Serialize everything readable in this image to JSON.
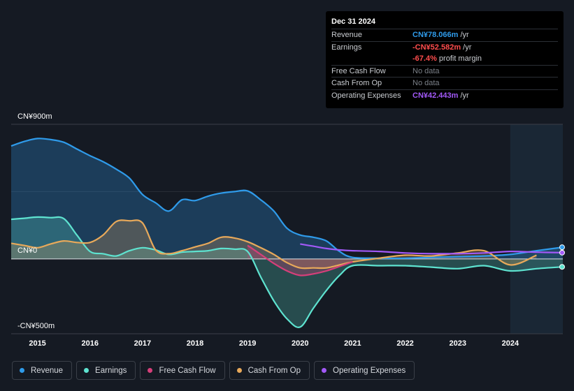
{
  "tooltip": {
    "date": "Dec 31 2024",
    "rows": [
      {
        "label": "Revenue",
        "value": "CN¥78.066m",
        "unit": " /yr"
      },
      {
        "label": "Earnings",
        "value": "-CN¥52.582m",
        "unit": " /yr"
      },
      {
        "label": "",
        "value": "-67.4%",
        "unit": " profit margin"
      },
      {
        "label": "Free Cash Flow",
        "value": "No data",
        "unit": ""
      },
      {
        "label": "Cash From Op",
        "value": "No data",
        "unit": ""
      },
      {
        "label": "Operating Expenses",
        "value": "CN¥42.443m",
        "unit": " /yr"
      }
    ]
  },
  "legend": [
    {
      "label": "Revenue",
      "color": "#2f9bea"
    },
    {
      "label": "Earnings",
      "color": "#5ee3d0"
    },
    {
      "label": "Free Cash Flow",
      "color": "#d63f7a"
    },
    {
      "label": "Cash From Op",
      "color": "#e8a95a"
    },
    {
      "label": "Operating Expenses",
      "color": "#a259f7"
    }
  ],
  "chart_data": {
    "type": "area",
    "y_tick_labels": {
      "top": "CN¥900m",
      "zero": "CN¥0",
      "bottom": "-CN¥500m"
    },
    "ylim": [
      -500,
      900
    ],
    "x_ticks": [
      2015,
      2016,
      2017,
      2018,
      2019,
      2020,
      2021,
      2022,
      2023,
      2024
    ],
    "xlim": [
      2014.5,
      2025.0
    ],
    "forecast_region_start": 2024.0,
    "series": [
      {
        "name": "Revenue",
        "color": "#2f9bea",
        "x": [
          2014.5,
          2014.75,
          2015.0,
          2015.25,
          2015.5,
          2015.75,
          2016.0,
          2016.25,
          2016.5,
          2016.75,
          2017.0,
          2017.25,
          2017.5,
          2017.75,
          2018.0,
          2018.25,
          2018.5,
          2018.75,
          2019.0,
          2019.25,
          2019.5,
          2019.75,
          2020.0,
          2020.25,
          2020.5,
          2020.75,
          2021.0,
          2021.5,
          2022.0,
          2022.5,
          2023.0,
          2023.5,
          2024.0,
          2024.5,
          2025.0
        ],
        "values": [
          755,
          785,
          805,
          798,
          780,
          735,
          690,
          650,
          600,
          540,
          430,
          375,
          320,
          395,
          390,
          420,
          440,
          450,
          455,
          395,
          320,
          205,
          160,
          145,
          120,
          50,
          10,
          5,
          5,
          10,
          15,
          20,
          30,
          55,
          78
        ]
      },
      {
        "name": "Earnings",
        "color": "#5ee3d0",
        "x": [
          2014.5,
          2014.75,
          2015.0,
          2015.25,
          2015.5,
          2015.75,
          2016.0,
          2016.25,
          2016.5,
          2016.75,
          2017.0,
          2017.25,
          2017.5,
          2017.75,
          2018.0,
          2018.25,
          2018.5,
          2018.75,
          2019.0,
          2019.25,
          2019.5,
          2019.75,
          2020.0,
          2020.25,
          2020.5,
          2020.75,
          2021.0,
          2021.5,
          2022.0,
          2022.5,
          2023.0,
          2023.5,
          2024.0,
          2024.5,
          2025.0
        ],
        "values": [
          265,
          272,
          280,
          276,
          270,
          160,
          50,
          35,
          20,
          55,
          75,
          60,
          30,
          45,
          50,
          55,
          70,
          65,
          50,
          -120,
          -280,
          -400,
          -455,
          -330,
          -210,
          -110,
          -45,
          -45,
          -45,
          -55,
          -65,
          -45,
          -80,
          -65,
          -53
        ]
      },
      {
        "name": "Free Cash Flow",
        "color": "#d63f7a",
        "x": [
          2019.0,
          2019.25,
          2019.5,
          2019.75,
          2020.0,
          2020.25,
          2020.5,
          2020.75,
          2021.0
        ],
        "values": [
          90,
          30,
          -30,
          -80,
          -110,
          -100,
          -80,
          -50,
          -20
        ]
      },
      {
        "name": "Cash From Op",
        "color": "#e8a95a",
        "x": [
          2014.5,
          2014.75,
          2015.0,
          2015.25,
          2015.5,
          2015.75,
          2016.0,
          2016.25,
          2016.5,
          2016.75,
          2017.0,
          2017.25,
          2017.5,
          2017.75,
          2018.0,
          2018.25,
          2018.5,
          2018.75,
          2019.0,
          2019.25,
          2019.5,
          2019.75,
          2020.0,
          2020.25,
          2020.5,
          2020.75,
          2021.0,
          2021.5,
          2022.0,
          2022.5,
          2023.0,
          2023.5,
          2024.0,
          2024.5
        ],
        "values": [
          105,
          90,
          75,
          100,
          120,
          110,
          110,
          160,
          250,
          255,
          240,
          60,
          35,
          55,
          80,
          105,
          145,
          140,
          115,
          75,
          30,
          -25,
          -60,
          -60,
          -60,
          -40,
          -20,
          5,
          25,
          20,
          40,
          55,
          -40,
          25
        ]
      },
      {
        "name": "Operating Expenses",
        "color": "#a259f7",
        "x": [
          2020.0,
          2020.25,
          2020.5,
          2020.75,
          2021.0,
          2021.5,
          2022.0,
          2022.5,
          2023.0,
          2023.5,
          2024.0,
          2024.5,
          2025.0
        ],
        "values": [
          100,
          85,
          70,
          60,
          55,
          50,
          40,
          35,
          35,
          40,
          50,
          45,
          42
        ]
      }
    ]
  }
}
